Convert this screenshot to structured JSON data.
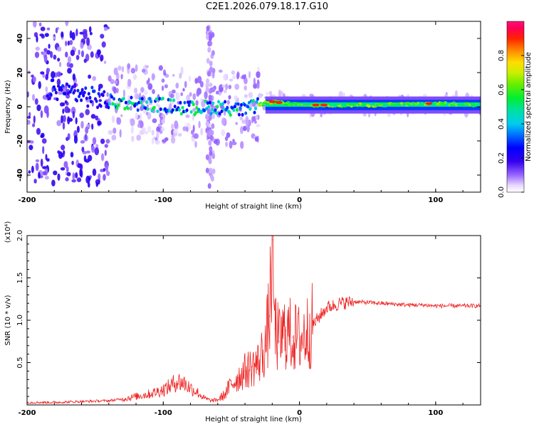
{
  "title": "C2E1.2026.079.18.17.G10",
  "chart_data": [
    {
      "type": "heatmap",
      "title": "C2E1.2026.079.18.17.G10",
      "xlabel": "Height of straight line (km)",
      "ylabel": "Frequency (Hz)",
      "xlim": [
        -200,
        133
      ],
      "ylim": [
        -50,
        50
      ],
      "x_ticks": [
        "-200",
        "-100",
        "0",
        "100"
      ],
      "y_ticks": [
        "-40",
        "-20",
        "0",
        "20",
        "40"
      ],
      "colorbar": {
        "label": "Normalized spectral amplitude",
        "range": [
          0,
          1
        ],
        "ticks": [
          "0.0",
          "0.2",
          "0.4",
          "0.6",
          "0.8"
        ]
      },
      "ridge_frequency": {
        "x": [
          -200,
          -180,
          -160,
          -140,
          -120,
          -100,
          -80,
          -60,
          -40,
          -30,
          -20,
          -10,
          0,
          20,
          60,
          100,
          133
        ],
        "y": [
          8,
          10,
          7,
          3,
          2,
          1,
          -1,
          0,
          -2,
          1,
          3,
          2,
          1,
          1,
          1,
          2,
          1
        ]
      }
    },
    {
      "type": "line",
      "xlabel": "Height of straight line (km)",
      "ylabel": "SNR (10 * v/v)",
      "y_scale_label": "(x10⁴)",
      "xlim": [
        -200,
        133
      ],
      "ylim": [
        0,
        2.0
      ],
      "x_ticks": [
        "-200",
        "-100",
        "0",
        "100"
      ],
      "y_ticks": [
        "0.5",
        "1.0",
        "1.5",
        "2.0"
      ],
      "series": [
        {
          "name": "SNR",
          "color": "#ee2222",
          "x": [
            -200,
            -180,
            -160,
            -140,
            -130,
            -120,
            -110,
            -100,
            -95,
            -90,
            -85,
            -80,
            -75,
            -70,
            -65,
            -60,
            -55,
            -50,
            -45,
            -40,
            -35,
            -30,
            -25,
            -22,
            -20,
            -18,
            -15,
            -12,
            -10,
            -5,
            0,
            5,
            10,
            15,
            20,
            30,
            40,
            50,
            60,
            70,
            80,
            90,
            100,
            110,
            120,
            133
          ],
          "values": [
            0.03,
            0.03,
            0.04,
            0.05,
            0.07,
            0.1,
            0.13,
            0.18,
            0.22,
            0.28,
            0.26,
            0.2,
            0.15,
            0.08,
            0.05,
            0.06,
            0.12,
            0.25,
            0.32,
            0.4,
            0.45,
            0.5,
            0.7,
            1.05,
            1.95,
            0.9,
            0.75,
            0.82,
            0.88,
            0.8,
            0.78,
            0.85,
            0.95,
            1.05,
            1.15,
            1.2,
            1.22,
            1.21,
            1.2,
            1.19,
            1.18,
            1.18,
            1.17,
            1.17,
            1.17,
            1.17
          ]
        }
      ]
    }
  ]
}
